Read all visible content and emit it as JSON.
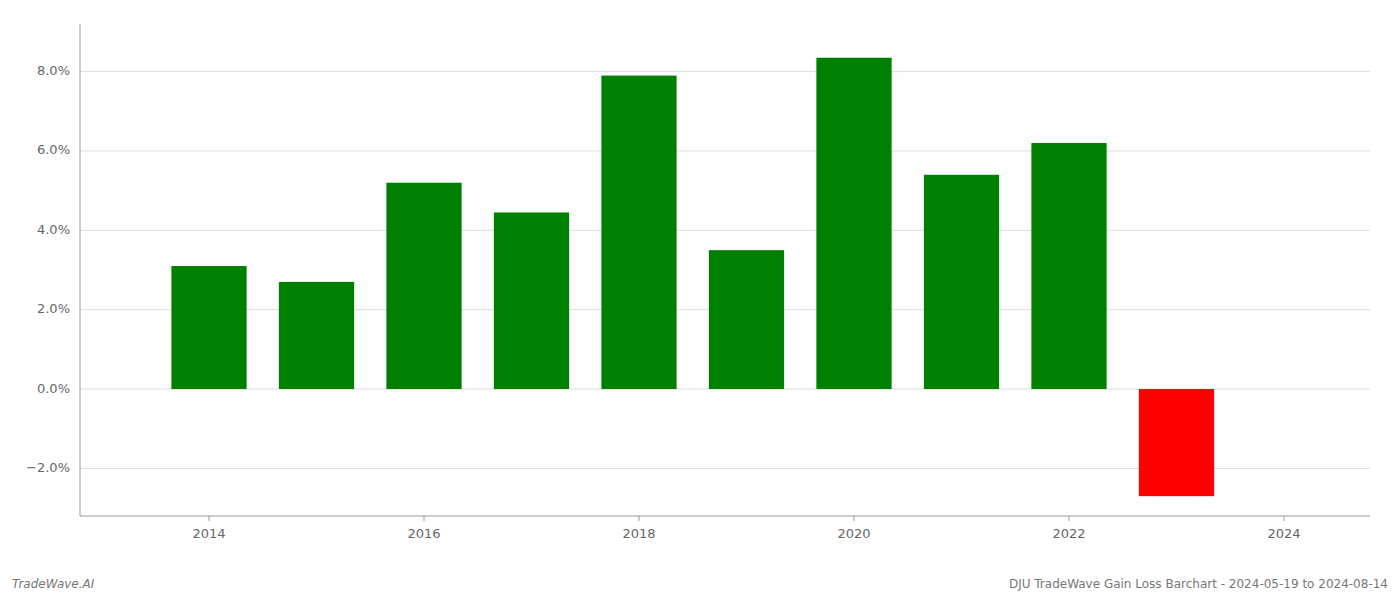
{
  "chart_data": {
    "type": "bar",
    "x": [
      2014,
      2015,
      2016,
      2017,
      2018,
      2019,
      2020,
      2021,
      2022,
      2023
    ],
    "values": [
      0.031,
      0.027,
      0.052,
      0.0445,
      0.079,
      0.035,
      0.0835,
      0.054,
      0.062,
      -0.027
    ],
    "colors": [
      "#008000",
      "#008000",
      "#008000",
      "#008000",
      "#008000",
      "#008000",
      "#008000",
      "#008000",
      "#008000",
      "#ff0000"
    ],
    "xlim": [
      2012.8,
      2024.8
    ],
    "xticks": [
      2014,
      2016,
      2018,
      2020,
      2022,
      2024
    ],
    "ylim": [
      -0.032,
      0.092
    ],
    "yticks": [
      {
        "value": -0.02,
        "label": "−2.0%"
      },
      {
        "value": 0.0,
        "label": "0.0%"
      },
      {
        "value": 0.02,
        "label": "2.0%"
      },
      {
        "value": 0.04,
        "label": "4.0%"
      },
      {
        "value": 0.06,
        "label": "6.0%"
      },
      {
        "value": 0.08,
        "label": "8.0%"
      }
    ],
    "grid": true,
    "annotations": [
      "TradeWave.AI",
      "DJU TradeWave Gain Loss Barchart - 2024-05-19 to 2024-08-14"
    ]
  }
}
